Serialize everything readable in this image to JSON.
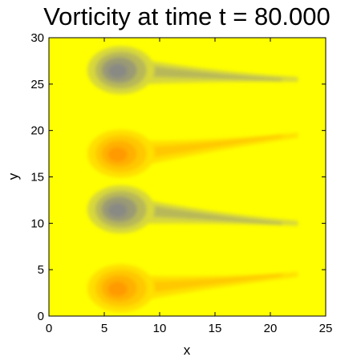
{
  "chart_data": {
    "type": "heatmap",
    "title": "Vorticity at time t = 80.000",
    "xlabel": "x",
    "ylabel": "y",
    "xlim": [
      0,
      25
    ],
    "ylim": [
      0,
      30
    ],
    "xticks": [
      0,
      5,
      10,
      15,
      20,
      25
    ],
    "yticks": [
      0,
      5,
      10,
      15,
      20,
      25,
      30
    ],
    "grid": false,
    "colormap": {
      "negative": "#8a8a84",
      "neutral": "#ffff00",
      "positive": "#ff9a00"
    },
    "features": [
      {
        "sign": "negative",
        "x": 6.5,
        "y": 26.5,
        "tail_end_x": 22.5,
        "tail_end_y": 25.5
      },
      {
        "sign": "positive",
        "x": 6.5,
        "y": 17.5,
        "tail_end_x": 22.5,
        "tail_end_y": 19.5
      },
      {
        "sign": "negative",
        "x": 6.5,
        "y": 11.5,
        "tail_end_x": 22.5,
        "tail_end_y": 10.0
      },
      {
        "sign": "positive",
        "x": 6.5,
        "y": 3.0,
        "tail_end_x": 22.5,
        "tail_end_y": 4.5
      }
    ]
  }
}
